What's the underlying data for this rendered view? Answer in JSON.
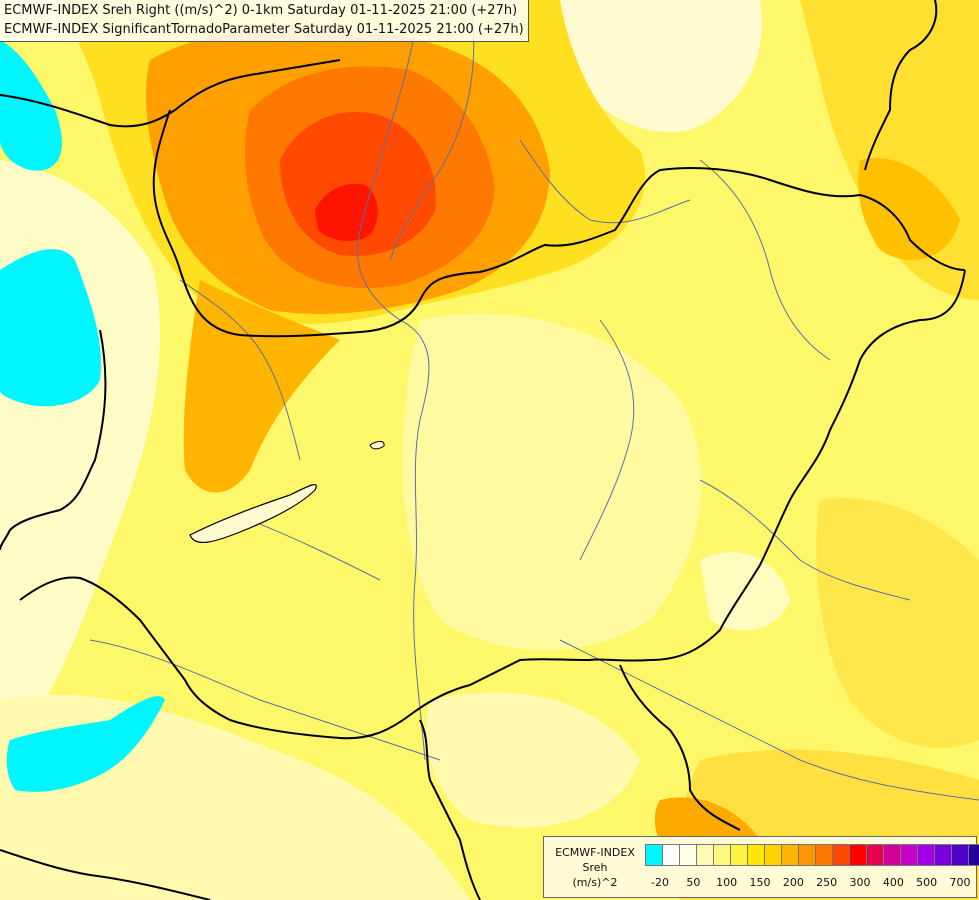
{
  "title": {
    "line1": "ECMWF-INDEX Sreh Right ((m/s)^2) 0-1km Saturday 01-11-2025 21:00 (+27h)",
    "line2": "ECMWF-INDEX SignificantTornadoParameter Saturday 01-11-2025 21:00 (+27h)"
  },
  "legend": {
    "line1": "ECMWF-INDEX",
    "line2": "Sreh",
    "line3": "(m/s)^2",
    "swatches": [
      "#00f5ff",
      "#ffffff",
      "#fffde6",
      "#fff9b3",
      "#fff680",
      "#fff240",
      "#ffe800",
      "#ffd200",
      "#ffb400",
      "#ff9600",
      "#ff7800",
      "#ff4600",
      "#ff0000",
      "#e60050",
      "#d20096",
      "#c800c8",
      "#a000e6",
      "#7800dc",
      "#5000c8",
      "#28009b",
      "#00006e"
    ],
    "ticks": [
      "-20",
      "50",
      "100",
      "150",
      "200",
      "250",
      "300",
      "400",
      "500",
      "700"
    ]
  },
  "colors": {
    "lowest": "#00f5ff",
    "light": "#fffde6",
    "yellow": "#fff240",
    "orange": "#ffa000",
    "red": "#ff1e00"
  }
}
